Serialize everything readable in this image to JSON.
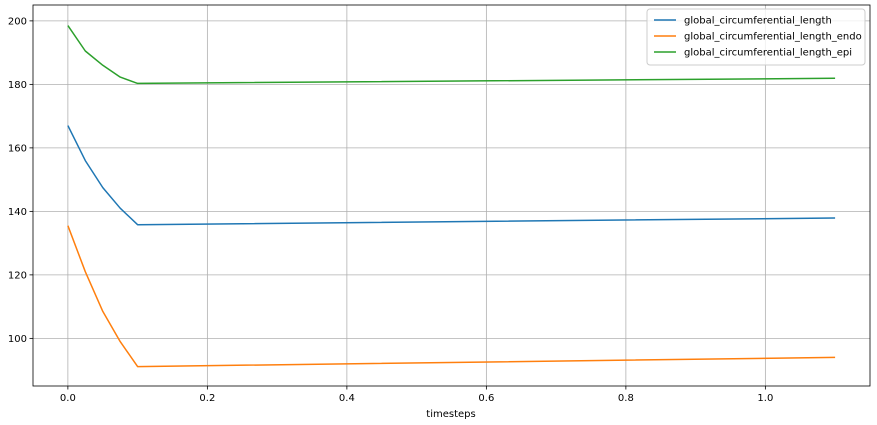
{
  "chart_data": {
    "type": "line",
    "title": "",
    "xlabel": "timesteps",
    "ylabel": "",
    "xlim": [
      -0.05,
      1.15
    ],
    "ylim": [
      85,
      205
    ],
    "xticks": [
      0.0,
      0.2,
      0.4,
      0.6,
      0.8,
      1.0
    ],
    "xtick_labels": [
      "0.0",
      "0.2",
      "0.4",
      "0.6",
      "0.8",
      "1.0"
    ],
    "yticks": [
      100,
      120,
      140,
      160,
      180,
      200
    ],
    "ytick_labels": [
      "100",
      "120",
      "140",
      "160",
      "180",
      "200"
    ],
    "grid": true,
    "legend_position": "top-right",
    "x": [
      0.0,
      0.025,
      0.05,
      0.075,
      0.1,
      1.1
    ],
    "series": [
      {
        "name": "global_circumferential_length",
        "color": "#1f77b4",
        "values": [
          167.0,
          156.0,
          147.5,
          141.0,
          135.8,
          137.9
        ]
      },
      {
        "name": "global_circumferential_length_endo",
        "color": "#ff7f0e",
        "values": [
          135.5,
          121.0,
          108.5,
          99.0,
          91.1,
          94.0
        ]
      },
      {
        "name": "global_circumferential_length_epi",
        "color": "#2ca02c",
        "values": [
          198.5,
          190.5,
          186.0,
          182.3,
          180.3,
          181.9
        ]
      }
    ]
  }
}
